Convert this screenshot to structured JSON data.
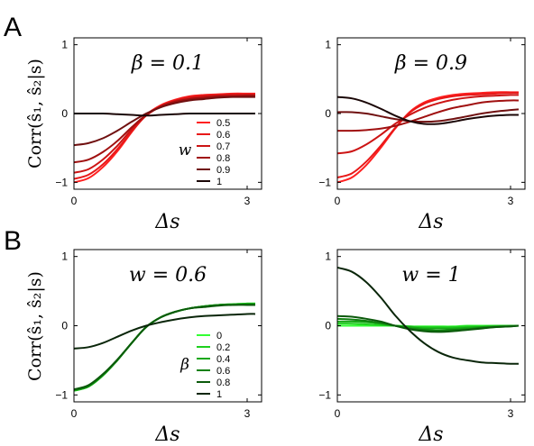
{
  "panel_labels": [
    "A",
    "B"
  ],
  "y_axis_label": "Corr(ŝ₁, ŝ₂|s)",
  "x_axis_label": "Δs",
  "chart_data": [
    {
      "type": "line",
      "panel": "A-left",
      "annotation": "β = 0.1",
      "xlabel": "Δs",
      "ylabel": "Corr(ŝ₁, ŝ₂|s)",
      "xlim": [
        0,
        3.25
      ],
      "ylim": [
        -1.1,
        1.1
      ],
      "xticks": [
        "0",
        "3"
      ],
      "yticks": [
        "-1",
        "0",
        "1"
      ],
      "legend_title": "w",
      "legend_position": "center-right",
      "series": [
        {
          "name": "0.5",
          "color": "#ff2020",
          "x": [
            0,
            0.25,
            0.5,
            0.75,
            1.0,
            1.25,
            1.5,
            1.75,
            2.0,
            2.25,
            2.5,
            2.75,
            3.0,
            3.14
          ],
          "y": [
            -1.0,
            -0.94,
            -0.78,
            -0.55,
            -0.27,
            -0.02,
            0.12,
            0.2,
            0.25,
            0.27,
            0.28,
            0.29,
            0.29,
            0.29
          ]
        },
        {
          "name": "0.6",
          "color": "#e81818",
          "x": [
            0,
            0.25,
            0.5,
            0.75,
            1.0,
            1.25,
            1.5,
            1.75,
            2.0,
            2.25,
            2.5,
            2.75,
            3.0,
            3.14
          ],
          "y": [
            -0.95,
            -0.89,
            -0.74,
            -0.52,
            -0.26,
            -0.03,
            0.11,
            0.19,
            0.24,
            0.26,
            0.27,
            0.28,
            0.28,
            0.28
          ]
        },
        {
          "name": "0.7",
          "color": "#cc1414",
          "x": [
            0,
            0.25,
            0.5,
            0.75,
            1.0,
            1.25,
            1.5,
            1.75,
            2.0,
            2.25,
            2.5,
            2.75,
            3.0,
            3.14
          ],
          "y": [
            -0.86,
            -0.81,
            -0.67,
            -0.47,
            -0.23,
            -0.03,
            0.1,
            0.18,
            0.22,
            0.25,
            0.26,
            0.27,
            0.27,
            0.27
          ]
        },
        {
          "name": "0.8",
          "color": "#a01010",
          "x": [
            0,
            0.25,
            0.5,
            0.75,
            1.0,
            1.25,
            1.5,
            1.75,
            2.0,
            2.25,
            2.5,
            2.75,
            3.0,
            3.14
          ],
          "y": [
            -0.71,
            -0.67,
            -0.56,
            -0.4,
            -0.2,
            -0.02,
            0.1,
            0.17,
            0.21,
            0.23,
            0.25,
            0.25,
            0.26,
            0.26
          ]
        },
        {
          "name": "0.9",
          "color": "#701010",
          "x": [
            0,
            0.25,
            0.5,
            0.75,
            1.0,
            1.25,
            1.5,
            1.75,
            2.0,
            2.25,
            2.5,
            2.75,
            3.0,
            3.14
          ],
          "y": [
            -0.46,
            -0.43,
            -0.36,
            -0.25,
            -0.12,
            0.0,
            0.09,
            0.15,
            0.19,
            0.21,
            0.23,
            0.24,
            0.24,
            0.24
          ]
        },
        {
          "name": "1",
          "color": "#1a0606",
          "x": [
            0,
            0.25,
            0.5,
            0.75,
            1.0,
            1.25,
            1.5,
            1.75,
            2.0,
            2.25,
            2.5,
            2.75,
            3.0,
            3.14
          ],
          "y": [
            0.0,
            0.0,
            0.0,
            -0.01,
            -0.02,
            -0.03,
            -0.02,
            -0.01,
            0.0,
            0.0,
            0.0,
            0.0,
            0.0,
            0.0
          ]
        }
      ]
    },
    {
      "type": "line",
      "panel": "A-right",
      "annotation": "β = 0.9",
      "xlabel": "Δs",
      "xlim": [
        0,
        3.25
      ],
      "ylim": [
        -1.1,
        1.1
      ],
      "xticks": [
        "0",
        "3"
      ],
      "yticks": [
        "-1",
        "0",
        "1"
      ],
      "series": [
        {
          "name": "0.5",
          "color": "#ff2020",
          "x": [
            0,
            0.25,
            0.5,
            0.75,
            1.0,
            1.25,
            1.5,
            1.75,
            2.0,
            2.25,
            2.5,
            2.75,
            3.0,
            3.14
          ],
          "y": [
            -1.0,
            -0.93,
            -0.75,
            -0.5,
            -0.22,
            0.02,
            0.16,
            0.23,
            0.27,
            0.29,
            0.3,
            0.31,
            0.31,
            0.31
          ]
        },
        {
          "name": "0.6",
          "color": "#e81818",
          "x": [
            0,
            0.25,
            0.5,
            0.75,
            1.0,
            1.25,
            1.5,
            1.75,
            2.0,
            2.25,
            2.5,
            2.75,
            3.0,
            3.14
          ],
          "y": [
            -0.93,
            -0.87,
            -0.7,
            -0.47,
            -0.21,
            0.01,
            0.14,
            0.21,
            0.25,
            0.27,
            0.28,
            0.29,
            0.3,
            0.3
          ]
        },
        {
          "name": "0.7",
          "color": "#cc1414",
          "x": [
            0,
            0.25,
            0.5,
            0.75,
            1.0,
            1.25,
            1.5,
            1.75,
            2.0,
            2.25,
            2.5,
            2.75,
            3.0,
            3.14
          ],
          "y": [
            -0.58,
            -0.55,
            -0.45,
            -0.31,
            -0.15,
            -0.02,
            0.08,
            0.15,
            0.2,
            0.23,
            0.25,
            0.26,
            0.27,
            0.27
          ]
        },
        {
          "name": "0.8",
          "color": "#a01010",
          "x": [
            0,
            0.25,
            0.5,
            0.75,
            1.0,
            1.25,
            1.5,
            1.75,
            2.0,
            2.25,
            2.5,
            2.75,
            3.0,
            3.14
          ],
          "y": [
            -0.25,
            -0.25,
            -0.24,
            -0.22,
            -0.18,
            -0.12,
            -0.05,
            0.02,
            0.08,
            0.12,
            0.16,
            0.18,
            0.19,
            0.19
          ]
        },
        {
          "name": "0.9",
          "color": "#701010",
          "x": [
            0,
            0.25,
            0.5,
            0.75,
            1.0,
            1.25,
            1.5,
            1.75,
            2.0,
            2.25,
            2.5,
            2.75,
            3.0,
            3.14
          ],
          "y": [
            0.02,
            0.02,
            0.0,
            -0.04,
            -0.08,
            -0.11,
            -0.12,
            -0.11,
            -0.08,
            -0.04,
            0.0,
            0.03,
            0.05,
            0.06
          ]
        },
        {
          "name": "1",
          "color": "#1a0606",
          "x": [
            0,
            0.25,
            0.5,
            0.75,
            1.0,
            1.25,
            1.5,
            1.75,
            2.0,
            2.25,
            2.5,
            2.75,
            3.0,
            3.14
          ],
          "y": [
            0.24,
            0.22,
            0.16,
            0.07,
            -0.03,
            -0.11,
            -0.15,
            -0.15,
            -0.12,
            -0.08,
            -0.05,
            -0.03,
            -0.02,
            -0.02
          ]
        }
      ]
    },
    {
      "type": "line",
      "panel": "B-left",
      "annotation": "w = 0.6",
      "xlabel": "Δs",
      "ylabel": "Corr(ŝ₁, ŝ₂|s)",
      "xlim": [
        0,
        3.25
      ],
      "ylim": [
        -1.1,
        1.1
      ],
      "xticks": [
        "0",
        "3"
      ],
      "yticks": [
        "-1",
        "0",
        "1"
      ],
      "legend_title": "β",
      "legend_position": "center-right",
      "series": [
        {
          "name": "0",
          "color": "#33ff33",
          "x": [
            0,
            0.25,
            0.5,
            0.75,
            1.0,
            1.25,
            1.5,
            1.75,
            2.0,
            2.25,
            2.5,
            2.75,
            3.0,
            3.14
          ],
          "y": [
            -0.94,
            -0.88,
            -0.72,
            -0.5,
            -0.25,
            -0.02,
            0.12,
            0.2,
            0.25,
            0.28,
            0.3,
            0.31,
            0.32,
            0.32
          ]
        },
        {
          "name": "0.2",
          "color": "#1ed01e",
          "x": [
            0,
            0.25,
            0.5,
            0.75,
            1.0,
            1.25,
            1.5,
            1.75,
            2.0,
            2.25,
            2.5,
            2.75,
            3.0,
            3.14
          ],
          "y": [
            -0.94,
            -0.88,
            -0.72,
            -0.5,
            -0.25,
            -0.02,
            0.12,
            0.2,
            0.25,
            0.28,
            0.3,
            0.31,
            0.32,
            0.32
          ]
        },
        {
          "name": "0.4",
          "color": "#14a814",
          "x": [
            0,
            0.25,
            0.5,
            0.75,
            1.0,
            1.25,
            1.5,
            1.75,
            2.0,
            2.25,
            2.5,
            2.75,
            3.0,
            3.14
          ],
          "y": [
            -0.93,
            -0.88,
            -0.72,
            -0.5,
            -0.25,
            -0.02,
            0.12,
            0.2,
            0.25,
            0.28,
            0.3,
            0.31,
            0.31,
            0.31
          ]
        },
        {
          "name": "0.6",
          "color": "#0f800f",
          "x": [
            0,
            0.25,
            0.5,
            0.75,
            1.0,
            1.25,
            1.5,
            1.75,
            2.0,
            2.25,
            2.5,
            2.75,
            3.0,
            3.14
          ],
          "y": [
            -0.93,
            -0.87,
            -0.71,
            -0.5,
            -0.25,
            -0.02,
            0.12,
            0.2,
            0.25,
            0.28,
            0.3,
            0.3,
            0.31,
            0.31
          ]
        },
        {
          "name": "0.8",
          "color": "#0b5a0b",
          "x": [
            0,
            0.25,
            0.5,
            0.75,
            1.0,
            1.25,
            1.5,
            1.75,
            2.0,
            2.25,
            2.5,
            2.75,
            3.0,
            3.14
          ],
          "y": [
            -0.92,
            -0.86,
            -0.7,
            -0.49,
            -0.25,
            -0.02,
            0.12,
            0.2,
            0.25,
            0.27,
            0.29,
            0.3,
            0.3,
            0.3
          ]
        },
        {
          "name": "1",
          "color": "#0a260a",
          "x": [
            0,
            0.25,
            0.5,
            0.75,
            1.0,
            1.25,
            1.5,
            1.75,
            2.0,
            2.25,
            2.5,
            2.75,
            3.0,
            3.14
          ],
          "y": [
            -0.33,
            -0.31,
            -0.25,
            -0.16,
            -0.07,
            0.0,
            0.05,
            0.09,
            0.12,
            0.14,
            0.15,
            0.16,
            0.17,
            0.17
          ]
        }
      ]
    },
    {
      "type": "line",
      "panel": "B-right",
      "annotation": "w = 1",
      "xlabel": "Δs",
      "xlim": [
        0,
        3.25
      ],
      "ylim": [
        -1.1,
        1.1
      ],
      "xticks": [
        "0",
        "3"
      ],
      "yticks": [
        "-1",
        "0",
        "1"
      ],
      "series": [
        {
          "name": "0",
          "color": "#33ff33",
          "x": [
            0,
            0.25,
            0.5,
            0.75,
            1.0,
            1.25,
            1.5,
            1.75,
            2.0,
            2.25,
            2.5,
            2.75,
            3.0,
            3.14
          ],
          "y": [
            0.0,
            0.0,
            0.0,
            0.0,
            0.0,
            -0.01,
            -0.01,
            -0.01,
            -0.01,
            0.0,
            0.0,
            0.0,
            0.0,
            0.0
          ]
        },
        {
          "name": "0.2",
          "color": "#1ed01e",
          "x": [
            0,
            0.25,
            0.5,
            0.75,
            1.0,
            1.25,
            1.5,
            1.75,
            2.0,
            2.25,
            2.5,
            2.75,
            3.0,
            3.14
          ],
          "y": [
            0.03,
            0.03,
            0.02,
            0.01,
            0.0,
            -0.01,
            -0.02,
            -0.02,
            -0.02,
            -0.01,
            -0.01,
            0.0,
            0.0,
            0.0
          ]
        },
        {
          "name": "0.4",
          "color": "#14a814",
          "x": [
            0,
            0.25,
            0.5,
            0.75,
            1.0,
            1.25,
            1.5,
            1.75,
            2.0,
            2.25,
            2.5,
            2.75,
            3.0,
            3.14
          ],
          "y": [
            0.06,
            0.06,
            0.05,
            0.03,
            0.0,
            -0.02,
            -0.04,
            -0.04,
            -0.04,
            -0.03,
            -0.02,
            -0.01,
            0.0,
            0.0
          ]
        },
        {
          "name": "0.6",
          "color": "#0f800f",
          "x": [
            0,
            0.25,
            0.5,
            0.75,
            1.0,
            1.25,
            1.5,
            1.75,
            2.0,
            2.25,
            2.5,
            2.75,
            3.0,
            3.14
          ],
          "y": [
            0.1,
            0.09,
            0.07,
            0.04,
            0.0,
            -0.04,
            -0.06,
            -0.07,
            -0.06,
            -0.05,
            -0.03,
            -0.02,
            -0.01,
            0.0
          ]
        },
        {
          "name": "0.8",
          "color": "#0b5a0b",
          "x": [
            0,
            0.25,
            0.5,
            0.75,
            1.0,
            1.25,
            1.5,
            1.75,
            2.0,
            2.25,
            2.5,
            2.75,
            3.0,
            3.14
          ],
          "y": [
            0.14,
            0.13,
            0.1,
            0.06,
            0.0,
            -0.05,
            -0.08,
            -0.09,
            -0.08,
            -0.06,
            -0.04,
            -0.02,
            -0.01,
            0.0
          ]
        },
        {
          "name": "1",
          "color": "#0a260a",
          "x": [
            0,
            0.25,
            0.5,
            0.75,
            1.0,
            1.25,
            1.5,
            1.75,
            2.0,
            2.25,
            2.5,
            2.75,
            3.0,
            3.14
          ],
          "y": [
            0.84,
            0.78,
            0.63,
            0.41,
            0.15,
            -0.07,
            -0.25,
            -0.38,
            -0.46,
            -0.5,
            -0.53,
            -0.54,
            -0.55,
            -0.55
          ]
        }
      ]
    }
  ]
}
